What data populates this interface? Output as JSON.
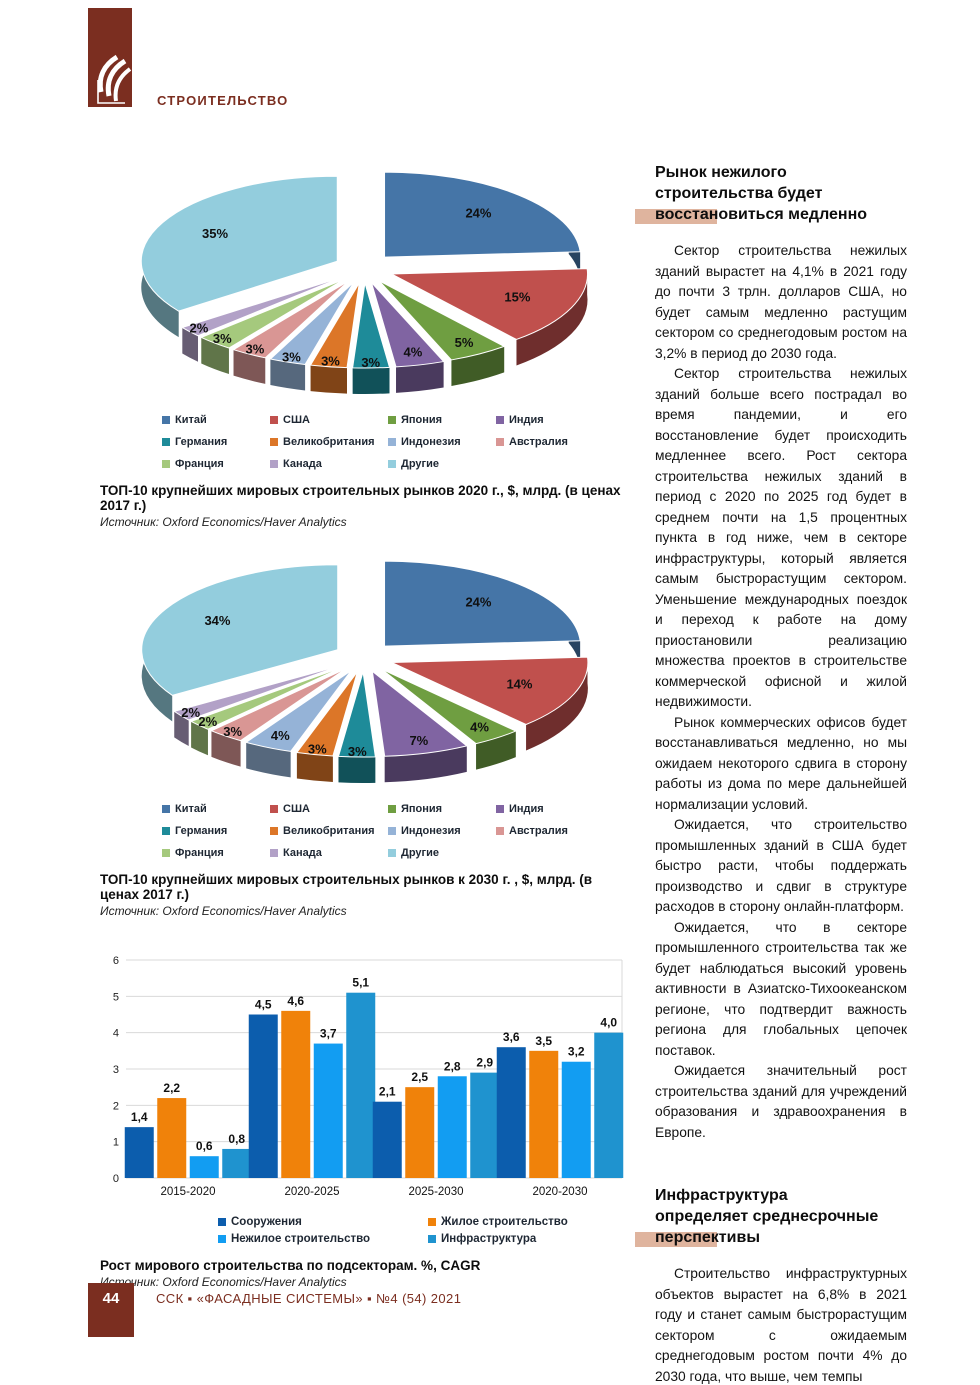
{
  "header": {
    "section_label": "СТРОИТЕЛЬСТВО"
  },
  "colors": {
    "brand": "#7b2e20",
    "highlight_bar": "#dfb49e",
    "grid_line": "#d9d9d9",
    "legend_text": "#1e2733"
  },
  "article": {
    "sections": [
      {
        "heading_lines": [
          "Рынок нежилого",
          "строительства будет",
          "восстановиться медленно"
        ],
        "paragraphs": [
          "Сектор строительства нежилых зданий вырастет на 4,1% в 2021 году до почти 3 трлн. долларов США, но будет самым медленно растущим сектором со среднегодовым ростом на 3,2% в период до 2030 года.",
          "Сектор строительства нежилых зданий больше всего пострадал во время пандемии, и его восстановление будет происходить медленнее всего. Рост сектора строительства нежилых зданий в период с 2020 по 2025 год будет в среднем почти на 1,5 процентных пункта в год ниже, чем в секторе инфраструктуры, который является самым быстрорастущим сектором. Уменьшение международных поездок и переход к работе на дому приостановили реализацию множества проектов в строительстве коммерческой офисной и жилой недвижимости.",
          "Рынок коммерческих офисов будет восстанавливаться медленно, но мы ожидаем некоторого сдвига в сторону работы из дома по мере дальнейшей нормализации условий.",
          "Ожидается, что строительство промышленных зданий в США будет быстро расти, чтобы поддержать производство и сдвиг в структуре расходов в сторону онлайн-платформ.",
          "Ожидается, что в секторе промышленного строительства так же будет наблюдаться высокий уровень активности в Азиатско-Тихоокеанском регионе, что подтвердит важность региона для глобальных цепочек поставок.",
          "Ожидается значительный рост строительства зданий для учреждений образования и здравоохранения в Европе."
        ]
      },
      {
        "heading_lines": [
          "Инфраструктура",
          "определяет среднесрочные",
          "перспективы"
        ],
        "paragraphs": [
          "Строительство инфраструктурных объектов вырастет на 6,8% в 2021 году и станет самым быстрорастущим сектором с ожидаемым среднегодовым ростом почти 4% до 2030 года, что выше, чем темпы"
        ]
      }
    ]
  },
  "chart_data": [
    {
      "type": "pie",
      "style": "3d-exploded",
      "title": "ТОП-10 крупнейших мировых строительных рынков 2020 г., $, млрд. (в ценах 2017 г.)",
      "source": "Источник: Oxford Economics/Haver Analytics",
      "unit": "% доля",
      "labels": [
        "Китай",
        "США",
        "Япония",
        "Индия",
        "Германия",
        "Великобритания",
        "Индонезия",
        "Австралия",
        "Франция",
        "Канада",
        "Другие"
      ],
      "values": [
        24,
        15,
        5,
        4,
        3,
        3,
        3,
        3,
        3,
        2,
        35
      ],
      "colors": [
        "#4575a7",
        "#c0504d",
        "#6f9e41",
        "#8064a2",
        "#1e8b99",
        "#dc7628",
        "#95b3d7",
        "#d99694",
        "#a5c97d",
        "#b2a1c7",
        "#93cddd"
      ],
      "legend_position": "bottom"
    },
    {
      "type": "pie",
      "style": "3d-exploded",
      "title": "ТОП-10 крупнейших мировых строительных рынков к 2030 г. , $, млрд. (в ценах 2017 г.)",
      "source": "Источник: Oxford Economics/Haver Analytics",
      "unit": "% доля",
      "labels": [
        "Китай",
        "США",
        "Япония",
        "Индия",
        "Германия",
        "Великобритания",
        "Индонезия",
        "Австралия",
        "Франция",
        "Канада",
        "Другие"
      ],
      "values": [
        24,
        14,
        4,
        7,
        3,
        3,
        4,
        3,
        2,
        2,
        34
      ],
      "colors": [
        "#4575a7",
        "#c0504d",
        "#6f9e41",
        "#8064a2",
        "#1e8b99",
        "#dc7628",
        "#95b3d7",
        "#d99694",
        "#a5c97d",
        "#b2a1c7",
        "#93cddd"
      ],
      "legend_position": "bottom"
    },
    {
      "type": "bar",
      "title": "Рост мирового строительства по подсекторам. %, CAGR",
      "source": "Источник: Oxford Economics/Haver Analytics",
      "categories": [
        "2015-2020",
        "2020-2025",
        "2025-2030",
        "2020-2030"
      ],
      "series": [
        {
          "name": "Сооружения",
          "color": "#0c5dad",
          "values": [
            1.4,
            4.5,
            2.1,
            3.6
          ]
        },
        {
          "name": "Жилое строительство",
          "color": "#f0820a",
          "values": [
            2.2,
            4.6,
            2.5,
            3.5
          ]
        },
        {
          "name": "Нежилое строительство",
          "color": "#129df2",
          "values": [
            0.6,
            3.7,
            2.8,
            3.2
          ]
        },
        {
          "name": "Инфраструктура",
          "color": "#1f93cf",
          "values": [
            0.8,
            5.1,
            2.9,
            4.0
          ]
        }
      ],
      "ylim": [
        0,
        6
      ],
      "yticks": [
        0,
        1,
        2,
        3,
        4,
        5,
        6
      ],
      "grid": "horizontal",
      "legend_position": "bottom"
    }
  ],
  "footer": {
    "page_number": "44",
    "text": "ССК ▪ «ФАСАДНЫЕ СИСТЕМЫ» ▪ №4 (54) 2021"
  }
}
